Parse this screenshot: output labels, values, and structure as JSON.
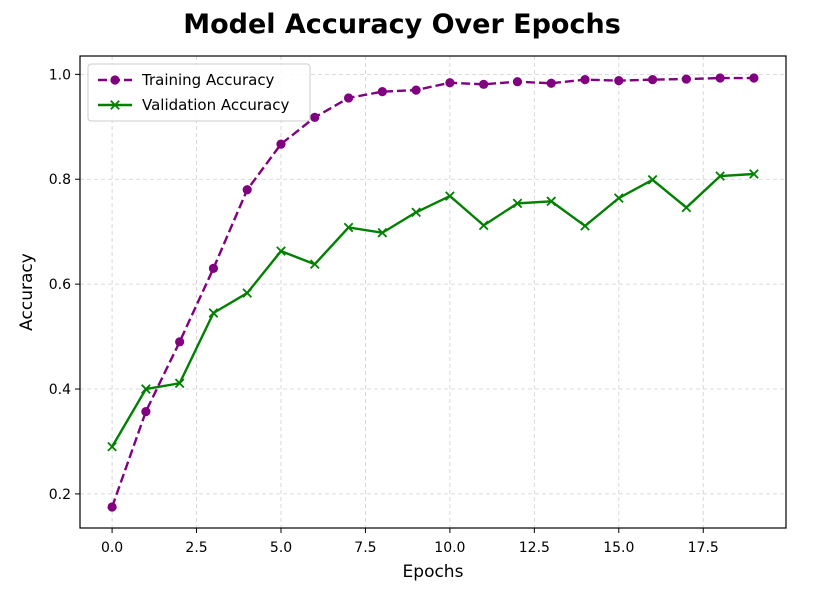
{
  "chart_data": {
    "type": "line",
    "title": "Model Accuracy Over Epochs",
    "xlabel": "Epochs",
    "ylabel": "Accuracy",
    "xlim": [
      -0.95,
      19.95
    ],
    "ylim": [
      0.135,
      1.035
    ],
    "xticks": [
      0.0,
      2.5,
      5.0,
      7.5,
      10.0,
      12.5,
      15.0,
      17.5
    ],
    "xtick_labels": [
      "0.0",
      "2.5",
      "5.0",
      "7.5",
      "10.0",
      "12.5",
      "15.0",
      "17.5"
    ],
    "yticks": [
      0.2,
      0.4,
      0.6,
      0.8,
      1.0
    ],
    "ytick_labels": [
      "0.2",
      "0.4",
      "0.6",
      "0.8",
      "1.0"
    ],
    "grid": true,
    "legend_position": "upper-left",
    "x": [
      0,
      1,
      2,
      3,
      4,
      5,
      6,
      7,
      8,
      9,
      10,
      11,
      12,
      13,
      14,
      15,
      16,
      17,
      18,
      19
    ],
    "series": [
      {
        "name": "Training Accuracy",
        "color": "#800080",
        "linestyle": "dashed",
        "marker": "circle",
        "values": [
          0.175,
          0.357,
          0.49,
          0.63,
          0.78,
          0.867,
          0.918,
          0.955,
          0.967,
          0.97,
          0.984,
          0.981,
          0.986,
          0.983,
          0.99,
          0.988,
          0.99,
          0.991,
          0.993,
          0.993
        ]
      },
      {
        "name": "Validation Accuracy",
        "color": "#008000",
        "linestyle": "solid",
        "marker": "x",
        "values": [
          0.29,
          0.4,
          0.411,
          0.545,
          0.583,
          0.663,
          0.638,
          0.708,
          0.698,
          0.737,
          0.768,
          0.712,
          0.754,
          0.758,
          0.711,
          0.764,
          0.799,
          0.746,
          0.806,
          0.81
        ]
      }
    ]
  }
}
